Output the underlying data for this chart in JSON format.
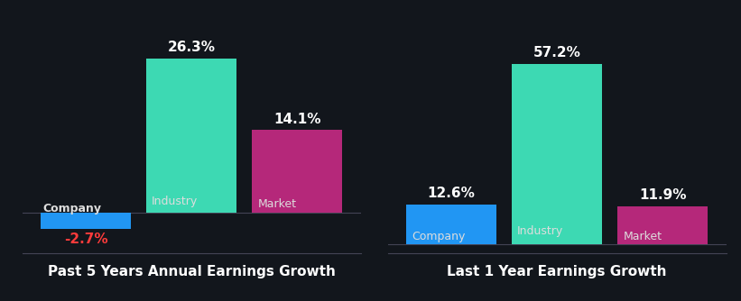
{
  "background_color": "#12161C",
  "charts": [
    {
      "title": "Past 5 Years Annual Earnings Growth",
      "bars": [
        {
          "label": "Company",
          "value": -2.7,
          "color": "#2196F3",
          "text_color": "#FF3B3B"
        },
        {
          "label": "Industry",
          "value": 26.3,
          "color": "#3DD9B3",
          "text_color": "#ffffff"
        },
        {
          "label": "Market",
          "value": 14.1,
          "color": "#B5287A",
          "text_color": "#ffffff"
        }
      ]
    },
    {
      "title": "Last 1 Year Earnings Growth",
      "bars": [
        {
          "label": "Company",
          "value": 12.6,
          "color": "#2196F3",
          "text_color": "#ffffff"
        },
        {
          "label": "Industry",
          "value": 57.2,
          "color": "#3DD9B3",
          "text_color": "#ffffff"
        },
        {
          "label": "Market",
          "value": 11.9,
          "color": "#B5287A",
          "text_color": "#ffffff"
        }
      ]
    }
  ],
  "title_color": "#ffffff",
  "title_fontsize": 11,
  "value_fontsize": 11,
  "bar_label_fontsize": 9,
  "bar_width": 0.85
}
